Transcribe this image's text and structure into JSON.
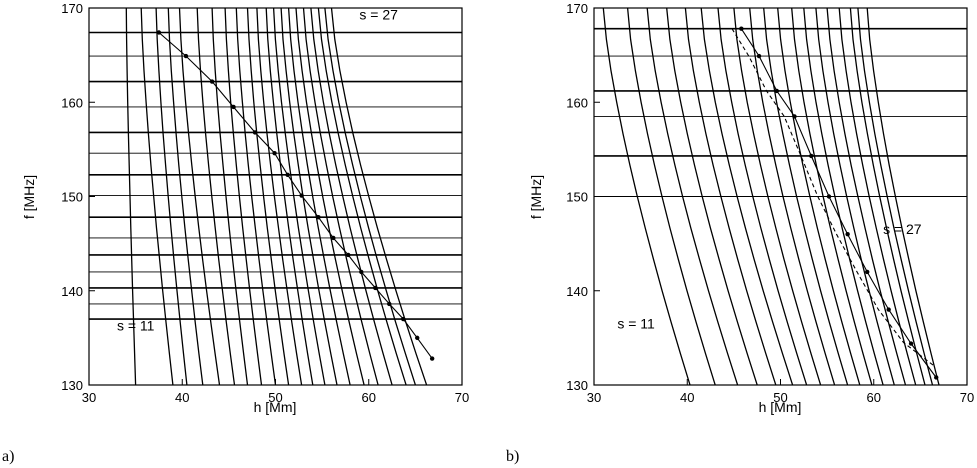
{
  "chart_data": [
    {
      "type": "line",
      "panel_label": "a)",
      "xlabel": "h [Mm]",
      "ylabel": "f [MHz]",
      "xlim": [
        30,
        70
      ],
      "ylim": [
        130,
        170
      ],
      "xticks": [
        "30",
        "40",
        "50",
        "60",
        "70"
      ],
      "yticks": [
        "130",
        "140",
        "150",
        "160",
        "170"
      ],
      "grid": false,
      "annotations": [
        {
          "text": "s = 27",
          "x": 59,
          "y": 168.8
        },
        {
          "text": "s = 11",
          "x": 33,
          "y": 135.8
        }
      ],
      "harmonic_curves": {
        "label_range": "s = 11 … s = 27",
        "x_at_170": [
          34.0,
          35.6,
          37.2,
          38.5,
          39.7,
          41.6,
          43.2,
          44.6,
          45.8,
          47.0,
          48.0,
          49.0,
          49.8,
          50.6,
          51.4,
          52.2,
          53.0,
          53.8,
          54.6,
          55.3,
          56.0
        ],
        "x_at_130": [
          35.0,
          39.0,
          40.5,
          42.2,
          44.0,
          45.6,
          47.0,
          48.5,
          50.0,
          51.4,
          52.8,
          54.0,
          55.3,
          56.6,
          58.0,
          59.5,
          61.0,
          62.5,
          64.0,
          65.0,
          66.2
        ]
      },
      "horizontal_lines_f": [
        167.4,
        164.9,
        162.2,
        159.5,
        156.8,
        154.6,
        152.3,
        150.1,
        147.8,
        145.6,
        143.8,
        142.0,
        140.3,
        138.6,
        137.0
      ],
      "series": [
        {
          "name": "",
          "style": "solid-with-markers",
          "x": [
            37.5,
            40.4,
            43.2,
            45.5,
            47.8,
            49.9,
            51.3,
            52.8,
            54.6,
            56.2,
            57.8,
            59.2,
            60.7,
            62.2,
            63.7,
            65.2,
            66.8
          ],
          "y": [
            167.4,
            164.9,
            162.2,
            159.5,
            156.8,
            154.6,
            152.3,
            150.1,
            147.8,
            145.6,
            143.8,
            142.0,
            140.3,
            138.6,
            137.0,
            135.0,
            132.8
          ]
        }
      ]
    },
    {
      "type": "line",
      "panel_label": "b)",
      "xlabel": "h [Mm]",
      "ylabel": "f [MHz]",
      "xlim": [
        30,
        70
      ],
      "ylim": [
        130,
        170
      ],
      "xticks": [
        "30",
        "40",
        "50",
        "60",
        "70"
      ],
      "yticks": [
        "130",
        "140",
        "150",
        "160",
        "170"
      ],
      "grid": false,
      "annotations": [
        {
          "text": "s = 27",
          "x": 61,
          "y": 146.0
        },
        {
          "text": "s = 11",
          "x": 32.5,
          "y": 136.0
        }
      ],
      "harmonic_curves": {
        "label_range": "s = 11 … s = 27",
        "x_at_170": [
          31.0,
          33.6,
          35.7,
          37.8,
          39.8,
          41.5,
          43.3,
          45.0,
          46.7,
          48.2,
          49.7,
          51.2,
          52.5,
          53.8,
          55.0,
          56.3,
          57.5,
          58.3,
          59.3
        ],
        "x_at_130": [
          40.3,
          43.0,
          45.4,
          47.5,
          49.5,
          51.3,
          52.8,
          54.3,
          55.8,
          57.2,
          58.5,
          59.8,
          61.0,
          62.2,
          63.4,
          64.5,
          65.5,
          66.3,
          67.0
        ]
      },
      "horizontal_lines_f": [
        167.8,
        164.9,
        161.2,
        158.5,
        154.3,
        150.0
      ],
      "series": [
        {
          "name": "",
          "style": "solid-with-markers",
          "x": [
            45.8,
            47.7,
            49.6,
            51.5,
            53.3,
            55.2,
            57.2,
            59.3,
            61.6,
            64.0,
            66.7
          ],
          "y": [
            167.8,
            164.9,
            161.2,
            158.5,
            154.3,
            150.0,
            146.0,
            142.0,
            138.0,
            134.4,
            130.8
          ]
        },
        {
          "name": "",
          "style": "dashed",
          "x": [
            44.8,
            46.6,
            48.5,
            50.4,
            52.2,
            54.0,
            56.0,
            58.2,
            60.5,
            63.2,
            66.5
          ],
          "y": [
            167.8,
            164.9,
            161.2,
            158.5,
            154.3,
            150.0,
            146.0,
            142.0,
            138.0,
            134.5,
            132.0
          ]
        }
      ]
    }
  ]
}
